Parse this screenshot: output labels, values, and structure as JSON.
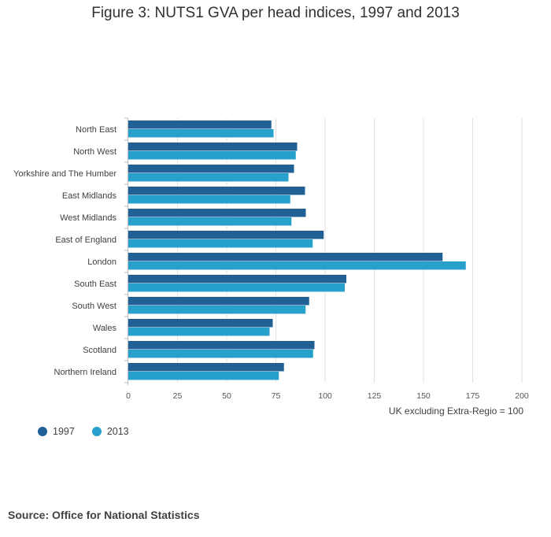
{
  "title": "Figure 3: NUTS1 GVA per head indices, 1997 and 2013",
  "source": "Source: Office for National Statistics",
  "colors": {
    "series_1997": "#206095",
    "series_2013": "#27a0cc",
    "grid": "#e2e2e2",
    "axis": "#bdbdbd"
  },
  "chart_data": {
    "type": "bar",
    "orientation": "horizontal",
    "title": "Figure 3: NUTS1 GVA per head indices, 1997 and 2013",
    "xlabel": "UK excluding Extra-Regio = 100",
    "ylabel": "",
    "xlim": [
      0,
      200
    ],
    "x_ticks": [
      0,
      25,
      50,
      75,
      100,
      125,
      150,
      175,
      200
    ],
    "grid": true,
    "legend_position": "bottom-left",
    "categories": [
      "North East",
      "North West",
      "Yorkshire and The Humber",
      "East Midlands",
      "West Midlands",
      "East of England",
      "London",
      "South East",
      "South West",
      "Wales",
      "Scotland",
      "Northern Ireland"
    ],
    "series": [
      {
        "name": "1997",
        "values": [
          72.7,
          85.8,
          84.2,
          89.8,
          90.2,
          99.3,
          159.7,
          110.8,
          91.9,
          73.4,
          94.6,
          79.1
        ]
      },
      {
        "name": "2013",
        "values": [
          73.8,
          85.1,
          81.4,
          82.3,
          82.9,
          93.7,
          171.5,
          110.0,
          90.1,
          71.8,
          93.9,
          76.5
        ]
      }
    ]
  }
}
